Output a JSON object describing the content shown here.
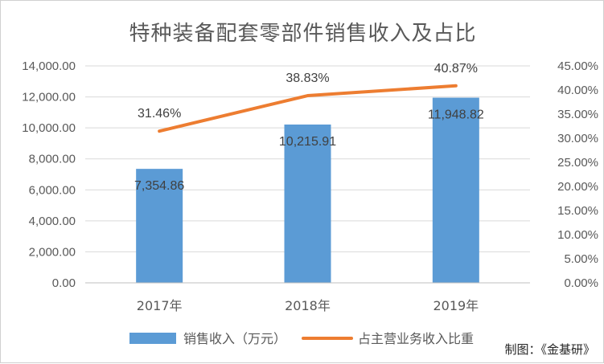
{
  "chart_data": {
    "type": "bar",
    "title": "特种装备配套零部件销售收入及占比",
    "categories": [
      "2017年",
      "2018年",
      "2019年"
    ],
    "series": [
      {
        "name": "销售收入（万元）",
        "type": "bar",
        "axis": "left",
        "color": "#5b9bd5",
        "values": [
          7354.86,
          10215.91,
          11948.82
        ],
        "labels": [
          "7,354.86",
          "10,215.91",
          "11,948.82"
        ]
      },
      {
        "name": "占主营业务收入比重",
        "type": "line",
        "axis": "right",
        "color": "#ed7d31",
        "values": [
          31.46,
          38.83,
          40.87
        ],
        "labels": [
          "31.46%",
          "38.83%",
          "40.87%"
        ]
      }
    ],
    "ylim_left": [
      0,
      14000
    ],
    "yticks_left": [
      "0.00",
      "2,000.00",
      "4,000.00",
      "6,000.00",
      "8,000.00",
      "10,000.00",
      "12,000.00",
      "14,000.00"
    ],
    "ylim_right": [
      0,
      45
    ],
    "yticks_right": [
      "0.00%",
      "5.00%",
      "10.00%",
      "15.00%",
      "20.00%",
      "25.00%",
      "30.00%",
      "35.00%",
      "40.00%",
      "45.00%"
    ],
    "grid": true,
    "legend_position": "bottom"
  },
  "credit": "制图：《金基研》"
}
